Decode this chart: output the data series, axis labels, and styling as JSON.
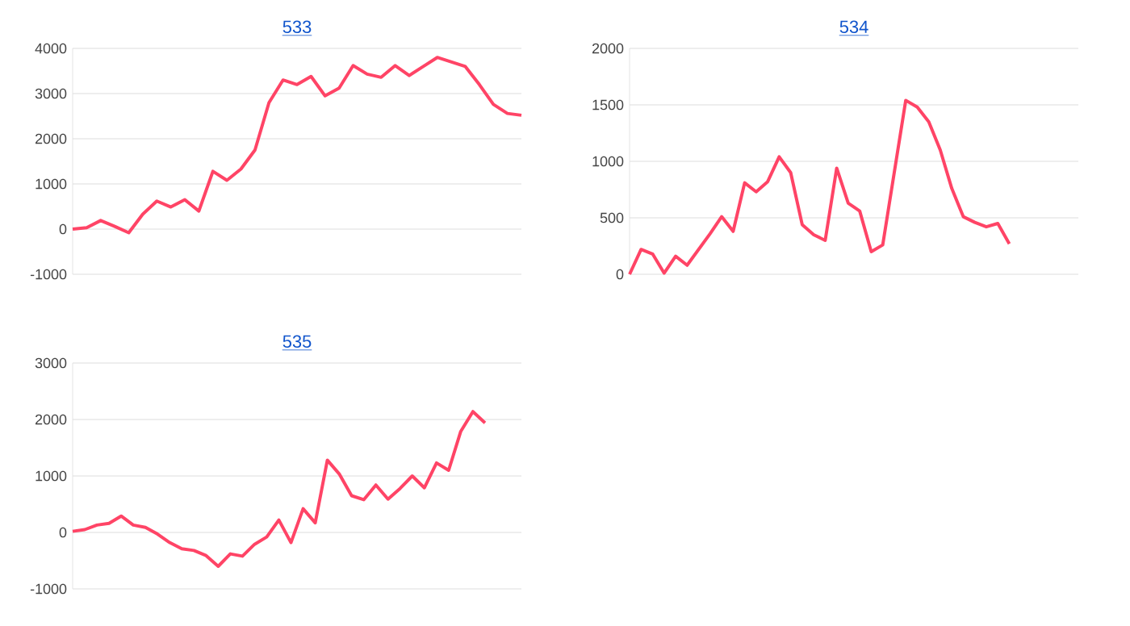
{
  "chart_data": [
    {
      "type": "line",
      "title": "533",
      "categories": [
        null,
        null,
        null,
        null,
        null,
        null,
        null,
        null,
        null,
        null,
        null,
        null,
        null,
        null,
        null,
        null,
        null,
        null,
        null,
        null,
        null,
        null,
        null,
        null,
        null,
        null,
        null,
        null,
        null,
        null,
        null,
        null,
        null
      ],
      "series": [
        {
          "color": "#ff4466",
          "values": [
            0,
            30,
            190,
            60,
            -80,
            330,
            620,
            490,
            650,
            400,
            1280,
            1080,
            1330,
            1750,
            2800,
            3300,
            3200,
            3380,
            2950,
            3120,
            3620,
            3430,
            3360,
            3620,
            3400,
            3600,
            3800,
            3700,
            3600,
            3200,
            2760,
            2560,
            2520
          ]
        }
      ],
      "ylim": [
        -1000,
        4000
      ],
      "yticks": [
        -1000,
        0,
        1000,
        2000,
        3000,
        4000
      ],
      "grid": "y",
      "tick_labels": "y"
    },
    {
      "type": "line",
      "title": "534",
      "categories": [
        null,
        null,
        null,
        null,
        null,
        null,
        null,
        null,
        null,
        null,
        null,
        null,
        null,
        null,
        null,
        null,
        null,
        null,
        null,
        null,
        null,
        null,
        null,
        null,
        null,
        null,
        null,
        null,
        null,
        null,
        null,
        null,
        null,
        null,
        null,
        null,
        null,
        null,
        null,
        null
      ],
      "series": [
        {
          "color": "#ff4466",
          "values": [
            0,
            220,
            180,
            10,
            160,
            80,
            220,
            360,
            510,
            380,
            810,
            730,
            820,
            1040,
            900,
            440,
            350,
            300,
            940,
            630,
            560,
            200,
            260,
            900,
            1540,
            1480,
            1350,
            1100,
            760,
            510,
            460,
            420,
            450,
            270,
            null,
            null,
            null,
            null,
            null,
            null
          ]
        }
      ],
      "ylim": [
        0,
        2000
      ],
      "yticks": [
        0,
        500,
        1000,
        1500,
        2000
      ],
      "grid": "y",
      "tick_labels": "y"
    },
    {
      "type": "line",
      "title": "535",
      "categories": [
        null,
        null,
        null,
        null,
        null,
        null,
        null,
        null,
        null,
        null,
        null,
        null,
        null,
        null,
        null,
        null,
        null,
        null,
        null,
        null,
        null,
        null,
        null,
        null,
        null,
        null,
        null,
        null,
        null,
        null,
        null,
        null,
        null,
        null,
        null,
        null,
        null,
        null
      ],
      "series": [
        {
          "color": "#ff4466",
          "values": [
            20,
            50,
            130,
            160,
            290,
            130,
            90,
            -30,
            -180,
            -290,
            -320,
            -410,
            -600,
            -380,
            -420,
            -210,
            -80,
            220,
            -180,
            420,
            170,
            1280,
            1030,
            650,
            580,
            840,
            590,
            780,
            1000,
            790,
            1230,
            1100,
            1790,
            2140,
            1940,
            null,
            null,
            null
          ]
        }
      ],
      "ylim": [
        -1000,
        3000
      ],
      "yticks": [
        -1000,
        0,
        1000,
        2000,
        3000
      ],
      "grid": "y",
      "tick_labels": "y"
    }
  ]
}
